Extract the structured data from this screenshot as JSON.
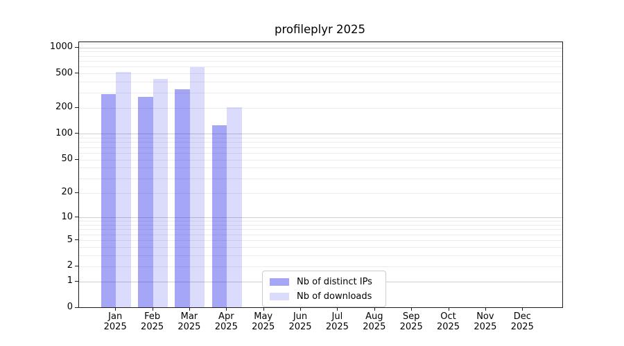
{
  "title": "profileplyr 2025",
  "colors": {
    "bar_distinct_ips": "rgba(0,0,230,0.35)",
    "bar_downloads": "rgba(0,0,230,0.14)",
    "grid_major": "#cfcfcf",
    "grid_minor": "#ececec",
    "spine": "#1a1a1a",
    "legend_border": "#cccccc",
    "text": "#000000"
  },
  "chart_data": {
    "type": "bar",
    "title": "profileplyr 2025",
    "categories": [
      "Jan 2025",
      "Feb 2025",
      "Mar 2025",
      "Apr 2025",
      "May 2025",
      "Jun 2025",
      "Jul 2025",
      "Aug 2025",
      "Sep 2025",
      "Oct 2025",
      "Nov 2025",
      "Dec 2025"
    ],
    "x_tick_labels": [
      [
        "Jan",
        "2025"
      ],
      [
        "Feb",
        "2025"
      ],
      [
        "Mar",
        "2025"
      ],
      [
        "Apr",
        "2025"
      ],
      [
        "May",
        "2025"
      ],
      [
        "Jun",
        "2025"
      ],
      [
        "Jul",
        "2025"
      ],
      [
        "Aug",
        "2025"
      ],
      [
        "Sep",
        "2025"
      ],
      [
        "Oct",
        "2025"
      ],
      [
        "Nov",
        "2025"
      ],
      [
        "Dec",
        "2025"
      ]
    ],
    "series": [
      {
        "name": "Nb of distinct IPs",
        "color": "rgba(0,0,230,0.35)",
        "values": [
          290,
          270,
          330,
          125,
          null,
          null,
          null,
          null,
          null,
          null,
          null,
          null
        ]
      },
      {
        "name": "Nb of downloads",
        "color": "rgba(0,0,230,0.14)",
        "values": [
          520,
          435,
          590,
          205,
          null,
          null,
          null,
          null,
          null,
          null,
          null,
          null
        ]
      }
    ],
    "y_axis": {
      "scale": "log10(value+1)",
      "ticks": [
        1000,
        500,
        200,
        100,
        50,
        20,
        10,
        5,
        2,
        1,
        0
      ],
      "range": [
        0,
        1150
      ],
      "major_gridlines": [
        1,
        10,
        100,
        1000
      ],
      "minor_gridlines": [
        2,
        3,
        4,
        5,
        6,
        7,
        8,
        9,
        20,
        30,
        40,
        50,
        60,
        70,
        80,
        90,
        200,
        300,
        400,
        500,
        600,
        700,
        800,
        900,
        1100
      ]
    },
    "grid": true,
    "legend": {
      "position": "inside-lower-center",
      "entries": [
        "Nb of distinct IPs",
        "Nb of downloads"
      ]
    }
  }
}
